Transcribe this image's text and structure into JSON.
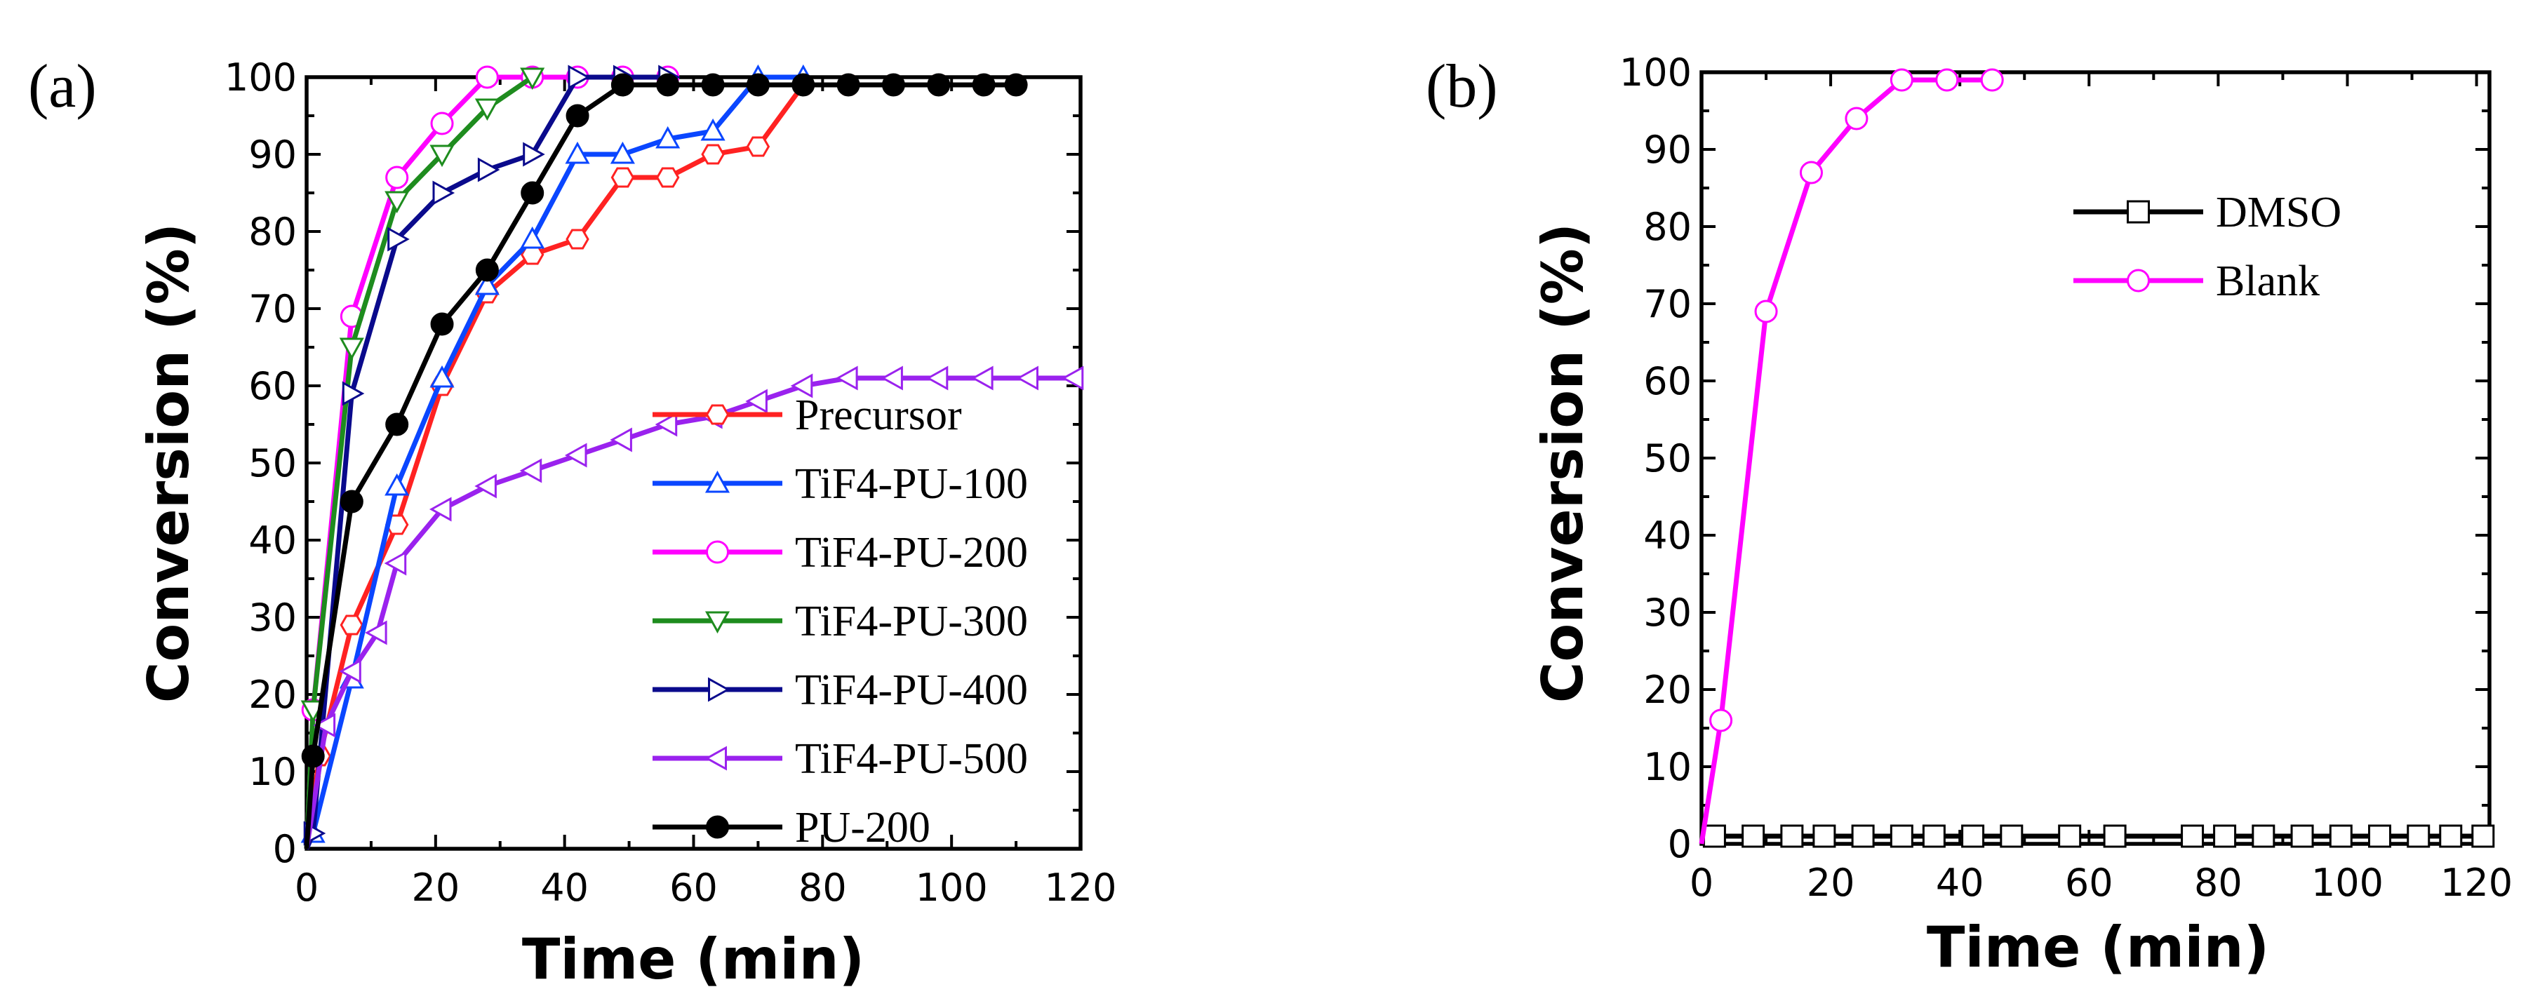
{
  "chart_data": [
    {
      "type": "line",
      "panel_label": "(a)",
      "xlabel": "Time (min)",
      "ylabel": "Conversion (%)",
      "xlim": [
        0,
        120
      ],
      "ylim": [
        0,
        100
      ],
      "xticks": [
        "0",
        "20",
        "40",
        "60",
        "80",
        "100",
        "120"
      ],
      "yticks": [
        "0",
        "10",
        "20",
        "30",
        "40",
        "50",
        "60",
        "70",
        "80",
        "90",
        "100"
      ],
      "legend_position": "bottom-right",
      "series": [
        {
          "name": "Precursor",
          "color": "#ff2222",
          "marker": "hexagon",
          "filled": false,
          "x": [
            0,
            2,
            7,
            14,
            21,
            28,
            35,
            42,
            49,
            56,
            63,
            70,
            77,
            84,
            91,
            98,
            105,
            110
          ],
          "y": [
            0,
            12,
            29,
            42,
            60,
            72,
            77,
            79,
            87,
            87,
            90,
            91,
            99,
            99,
            99,
            99,
            99,
            99
          ]
        },
        {
          "name": "TiF4-PU-100",
          "color": "#0a46ff",
          "marker": "triangle-up",
          "filled": false,
          "x": [
            0,
            1,
            7,
            14,
            21,
            28,
            35,
            42,
            49,
            56,
            63,
            70,
            77
          ],
          "y": [
            0,
            2,
            22,
            47,
            61,
            73,
            79,
            90,
            90,
            92,
            93,
            100,
            100
          ]
        },
        {
          "name": "TiF4-PU-200",
          "color": "#ff00ff",
          "marker": "circle",
          "filled": false,
          "x": [
            0,
            1,
            7,
            14,
            21,
            28,
            35,
            42,
            49,
            56
          ],
          "y": [
            0,
            18,
            69,
            87,
            94,
            100,
            100,
            100,
            100,
            100
          ]
        },
        {
          "name": "TiF4-PU-300",
          "color": "#1e8c1e",
          "marker": "triangle-down",
          "filled": false,
          "x": [
            0,
            1,
            7,
            14,
            21,
            28,
            35
          ],
          "y": [
            0,
            18,
            65,
            84,
            90,
            96,
            100
          ]
        },
        {
          "name": "TiF4-PU-400",
          "color": "#0a0a8c",
          "marker": "triangle-right",
          "filled": false,
          "x": [
            0,
            1,
            7,
            14,
            21,
            28,
            35,
            42,
            49,
            56
          ],
          "y": [
            0,
            2,
            59,
            79,
            85,
            88,
            90,
            100,
            100,
            100
          ]
        },
        {
          "name": "TiF4-PU-500",
          "color": "#9a22ee",
          "marker": "triangle-left",
          "filled": false,
          "x": [
            0,
            3,
            7,
            11,
            14,
            21,
            28,
            35,
            42,
            49,
            56,
            63,
            70,
            77,
            84,
            91,
            98,
            105,
            112,
            119
          ],
          "y": [
            0,
            16,
            23,
            28,
            37,
            44,
            47,
            49,
            51,
            53,
            55,
            56,
            58,
            60,
            61,
            61,
            61,
            61,
            61,
            61
          ]
        },
        {
          "name": "PU-200",
          "color": "#000000",
          "marker": "circle",
          "filled": true,
          "x": [
            0,
            1,
            7,
            14,
            21,
            28,
            35,
            42,
            49,
            56,
            63,
            70,
            77,
            84,
            91,
            98,
            105,
            110
          ],
          "y": [
            0,
            12,
            45,
            55,
            68,
            75,
            85,
            95,
            99,
            99,
            99,
            99,
            99,
            99,
            99,
            99,
            99,
            99
          ]
        }
      ]
    },
    {
      "type": "line",
      "panel_label": "(b)",
      "xlabel": "Time (min)",
      "ylabel": "Conversion (%)",
      "xlim": [
        0,
        122
      ],
      "ylim": [
        0,
        100
      ],
      "xticks": [
        "0",
        "20",
        "40",
        "60",
        "80",
        "100",
        "120"
      ],
      "yticks": [
        "0",
        "10",
        "20",
        "30",
        "40",
        "50",
        "60",
        "70",
        "80",
        "90",
        "100"
      ],
      "legend_position": "top-right",
      "series": [
        {
          "name": "DMSO",
          "color": "#000000",
          "marker": "square",
          "filled": false,
          "x": [
            2,
            8,
            14,
            19,
            25,
            31,
            36,
            42,
            48,
            57,
            64,
            76,
            81,
            87,
            93,
            99,
            105,
            111,
            116,
            121
          ],
          "y": [
            1,
            1,
            1,
            1,
            1,
            1,
            1,
            1,
            1,
            1,
            1,
            1,
            1,
            1,
            1,
            1,
            1,
            1,
            1,
            1
          ]
        },
        {
          "name": "Blank",
          "color": "#ff00ff",
          "marker": "circle",
          "filled": false,
          "x": [
            0,
            3,
            10,
            17,
            24,
            31,
            38,
            45
          ],
          "y": [
            0,
            16,
            69,
            87,
            94,
            99,
            99,
            99
          ]
        }
      ]
    }
  ]
}
